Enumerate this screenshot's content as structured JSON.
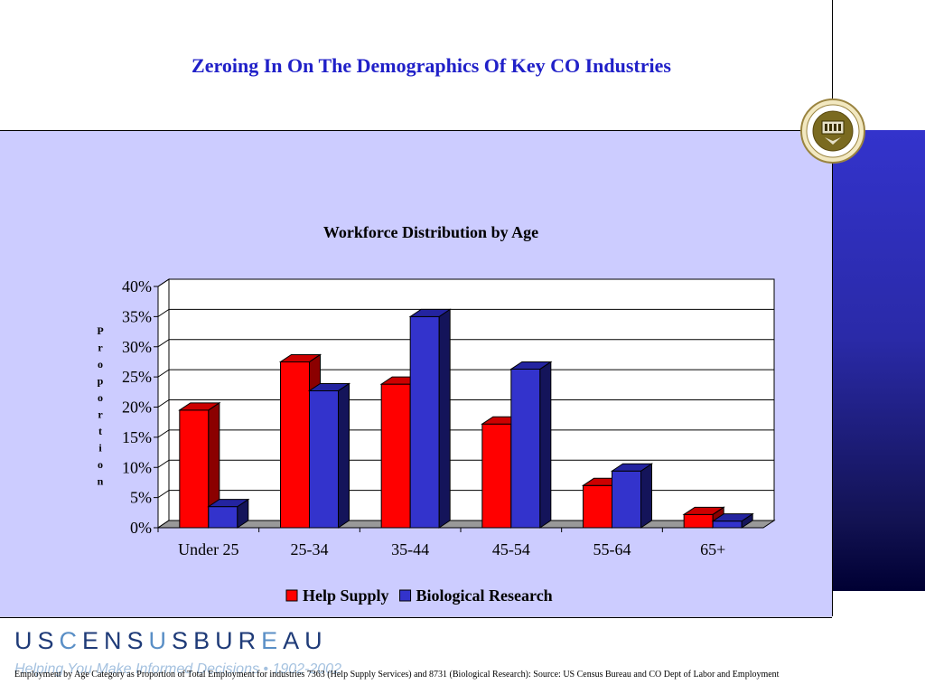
{
  "slide": {
    "title": "Zeroing In On The Demographics Of Key CO Industries",
    "footnote": "Employment by Age Category as Proportion of Total Employment for industries 7363 (Help Supply Services) and 8731 (Biological Research): Source: US Census Bureau and CO Dept of Labor and Employment"
  },
  "branding": {
    "seal_icon": "department-of-commerce-seal-icon",
    "census_letters": [
      "U",
      "S",
      "C",
      "E",
      "N",
      "S",
      "U",
      "S",
      "B",
      "U",
      "R",
      "E",
      "A",
      "U"
    ],
    "tagline": "Helping You Make Informed Decisions • 1902-2002"
  },
  "colors": {
    "help_supply": "#ff0000",
    "biological_research": "#3333cc",
    "panel": "#ccccff",
    "title": "#2020c8"
  },
  "chart_data": {
    "type": "bar",
    "title": "Workforce Distribution by Age",
    "xlabel": "",
    "ylabel": "Proportion",
    "categories": [
      "Under 25",
      "25-34",
      "35-44",
      "45-54",
      "55-64",
      "65+"
    ],
    "series": [
      {
        "name": "Help Supply",
        "values": [
          19.5,
          27.5,
          23.8,
          17.2,
          7.0,
          2.2
        ]
      },
      {
        "name": "Biological Research",
        "values": [
          3.5,
          22.7,
          35.0,
          26.3,
          9.4,
          1.1
        ]
      }
    ],
    "ylim": [
      0,
      40
    ],
    "yticks": [
      "0%",
      "5%",
      "10%",
      "15%",
      "20%",
      "25%",
      "30%",
      "35%",
      "40%"
    ],
    "grid": true,
    "legend": "bottom",
    "style": "3d-clustered-column"
  }
}
